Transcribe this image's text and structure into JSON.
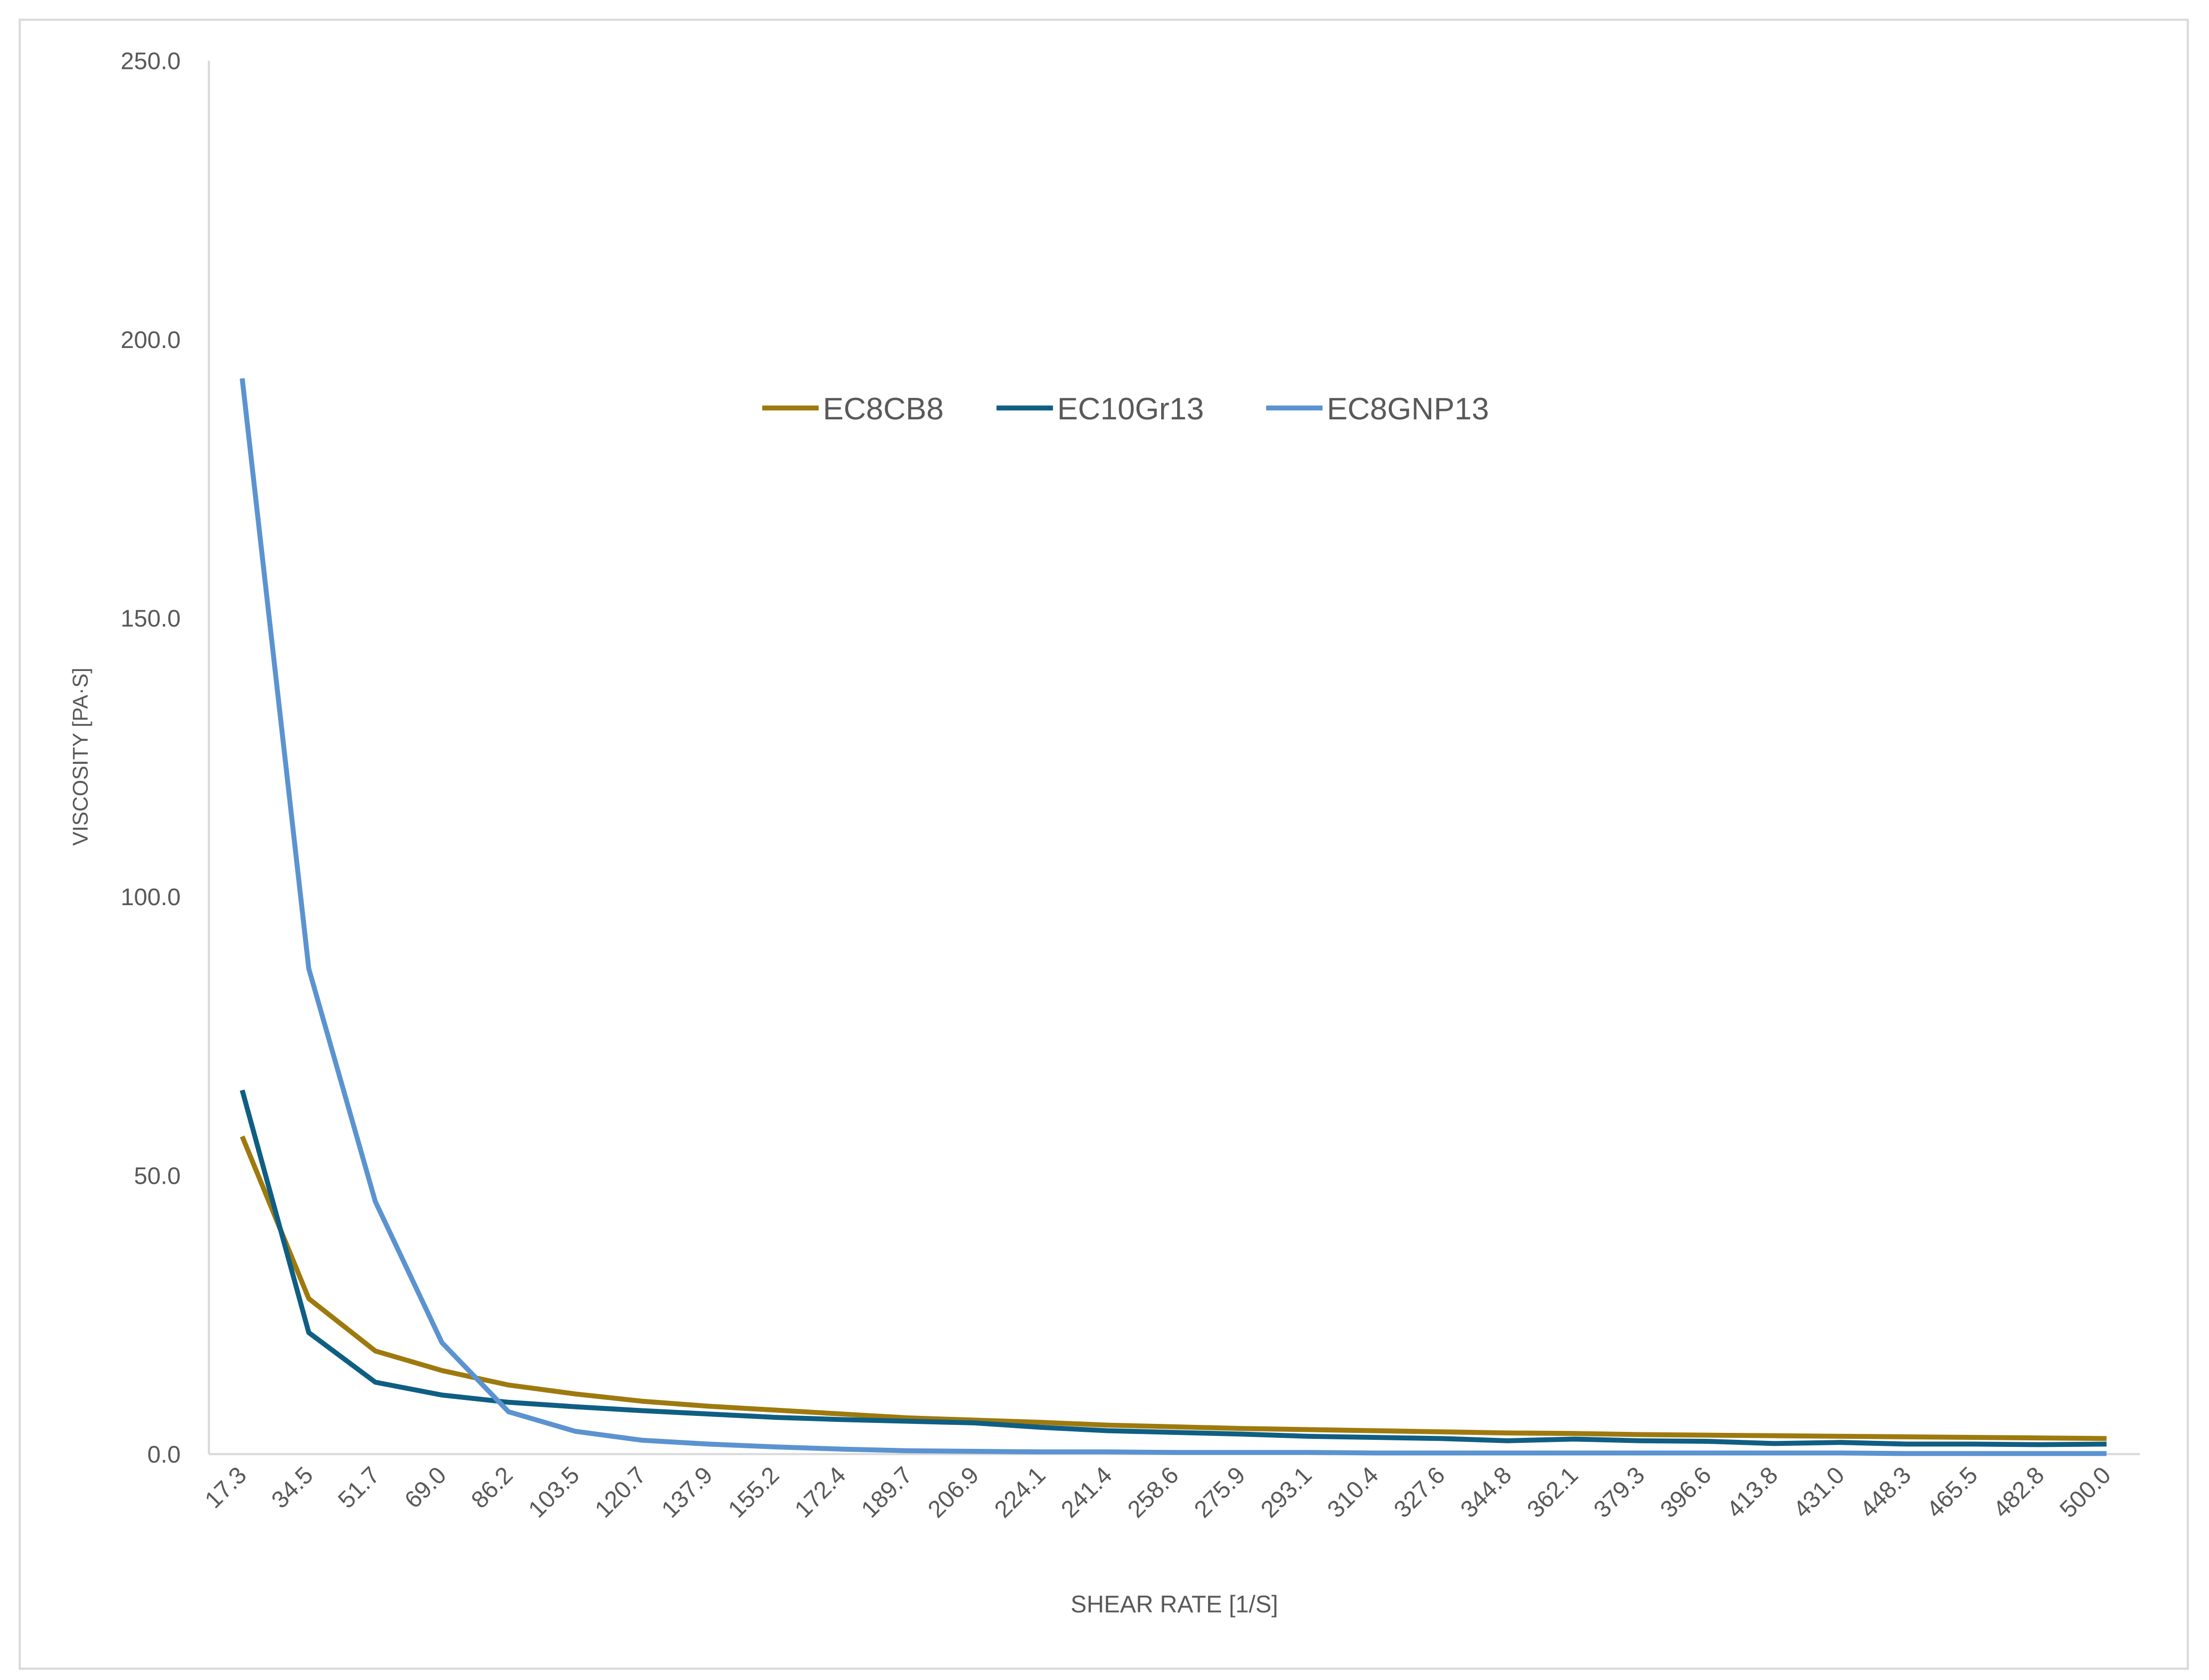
{
  "chart_data": {
    "type": "line",
    "x_label": "SHEAR RATE [1/S]",
    "y_label": "VISCOSITY  [PA·S]",
    "categories": [
      "17.3",
      "34.5",
      "51.7",
      "69.0",
      "86.2",
      "103.5",
      "120.7",
      "137.9",
      "155.2",
      "172.4",
      "189.7",
      "206.9",
      "224.1",
      "241.4",
      "258.6",
      "275.9",
      "293.1",
      "310.4",
      "327.6",
      "344.8",
      "362.1",
      "379.3",
      "396.6",
      "413.8",
      "431.0",
      "448.3",
      "465.5",
      "482.8",
      "500.0"
    ],
    "series": [
      {
        "name": "EC8CB8",
        "color": "#9e7a0e",
        "values": [
          57,
          27.9,
          18.5,
          15,
          12.4,
          10.8,
          9.5,
          8.6,
          7.9,
          7.2,
          6.5,
          6.1,
          5.7,
          5.2,
          4.9,
          4.6,
          4.4,
          4.2,
          4.0,
          3.8,
          3.7,
          3.5,
          3.4,
          3.3,
          3.2,
          3.1,
          3.0,
          2.9,
          2.8
        ]
      },
      {
        "name": "EC10Gr13",
        "color": "#0f5e83",
        "values": [
          65.3,
          21.8,
          12.9,
          10.6,
          9.3,
          8.5,
          7.8,
          7.2,
          6.6,
          6.2,
          5.9,
          5.6,
          4.8,
          4.2,
          3.9,
          3.6,
          3.2,
          3.0,
          2.8,
          2.4,
          2.7,
          2.4,
          2.3,
          1.9,
          2.1,
          1.8,
          1.8,
          1.7,
          1.8
        ]
      },
      {
        "name": "EC8GNP13",
        "color": "#5b93d0",
        "values": [
          193,
          87.1,
          45.3,
          20,
          7.6,
          4.1,
          2.5,
          1.8,
          1.3,
          0.9,
          0.6,
          0.5,
          0.4,
          0.4,
          0.3,
          0.3,
          0.3,
          0.2,
          0.2,
          0.2,
          0.2,
          0.2,
          0.2,
          0.2,
          0.2,
          0.1,
          0.1,
          0.1,
          0.1
        ]
      }
    ],
    "ylim": [
      0,
      250
    ],
    "yticks": [
      {
        "value": 0,
        "label": "0.0"
      },
      {
        "value": 50,
        "label": "50.0"
      },
      {
        "value": 100,
        "label": "100.0"
      },
      {
        "value": 150,
        "label": "150.0"
      },
      {
        "value": 200,
        "label": "200.0"
      },
      {
        "value": 250,
        "label": "250.0"
      }
    ],
    "grid": false
  }
}
